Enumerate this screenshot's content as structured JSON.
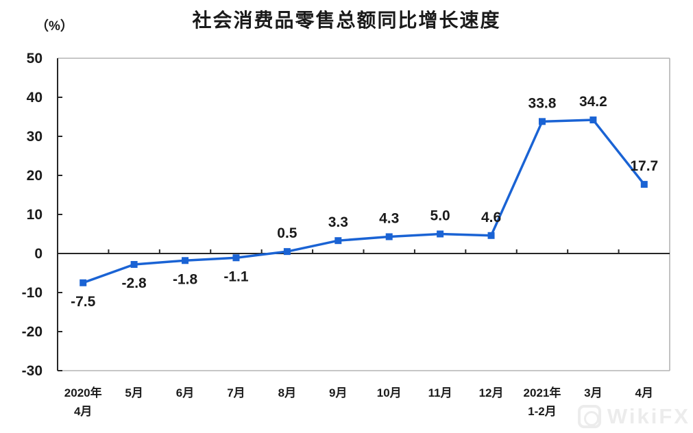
{
  "title": "社会消费品零售总额同比增长速度",
  "watermark": {
    "text": "WikiFX",
    "logo_icon": "wikifx-rounded-square-logo"
  },
  "chart_data": {
    "type": "line",
    "title": "社会消费品零售总额同比增长速度",
    "xlabel": "",
    "ylabel": "（%）",
    "ylim": [
      -30,
      50
    ],
    "yticks": [
      50,
      40,
      30,
      20,
      10,
      0,
      -10,
      -20,
      -30
    ],
    "grid": "zero-baseline-only",
    "legend_position": "none",
    "categories": [
      [
        "2020年",
        "4月"
      ],
      [
        "5月"
      ],
      [
        "6月"
      ],
      [
        "7月"
      ],
      [
        "8月"
      ],
      [
        "9月"
      ],
      [
        "10月"
      ],
      [
        "11月"
      ],
      [
        "12月"
      ],
      [
        "2021年",
        "1-2月"
      ],
      [
        "3月"
      ],
      [
        "4月"
      ]
    ],
    "series": [
      {
        "name": "社会消费品零售总额同比增长速度",
        "values": [
          -7.5,
          -2.8,
          -1.8,
          -1.1,
          0.5,
          3.3,
          4.3,
          5.0,
          4.6,
          33.8,
          34.2,
          17.7
        ],
        "value_labels": [
          "-7.5",
          "-2.8",
          "-1.8",
          "-1.1",
          "0.5",
          "3.3",
          "4.3",
          "5.0",
          "4.6",
          "33.8",
          "34.2",
          "17.7"
        ],
        "color": "#1a63d4",
        "marker": "square"
      }
    ],
    "colors": {
      "line": "#1a63d4",
      "axis": "#262626",
      "plot_border": "#b3b3b3",
      "text": "#1a1a1a"
    }
  }
}
